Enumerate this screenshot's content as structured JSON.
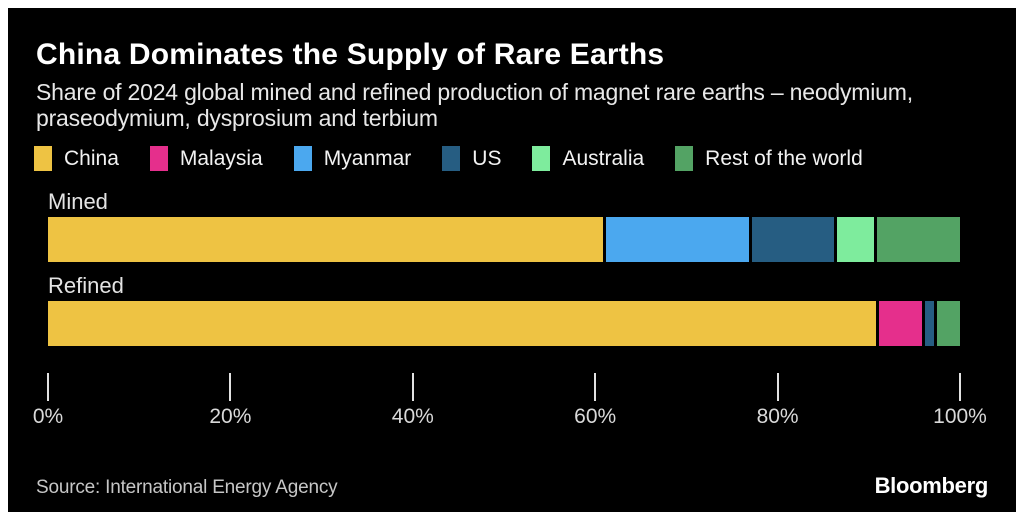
{
  "header": {
    "title": "China Dominates the Supply of Rare Earths",
    "subtitle": "Share of 2024 global mined and refined production of magnet rare earths – neodymium, praseodymium, dysprosium and terbium"
  },
  "chart_data": {
    "type": "bar",
    "stacked": true,
    "orientation": "horizontal",
    "title": "China Dominates the Supply of Rare Earths",
    "categories": [
      "Mined",
      "Refined"
    ],
    "series": [
      {
        "name": "China",
        "color": "#EEC343",
        "values": [
          61,
          91
        ]
      },
      {
        "name": "Malaysia",
        "color": "#E52F8C",
        "values": [
          0,
          5
        ]
      },
      {
        "name": "Myanmar",
        "color": "#4BA8EF",
        "values": [
          16,
          0
        ]
      },
      {
        "name": "US",
        "color": "#265D82",
        "values": [
          9.4,
          1.3
        ]
      },
      {
        "name": "Australia",
        "color": "#7EEC9D",
        "values": [
          4.3,
          0
        ]
      },
      {
        "name": "Rest of the world",
        "color": "#53A364",
        "values": [
          9.3,
          2.7
        ]
      }
    ],
    "x_ticks": [
      "0%",
      "20%",
      "40%",
      "60%",
      "80%",
      "100%"
    ],
    "xlim": [
      0,
      100
    ],
    "unit": "%",
    "legend_position": "top",
    "grid": false
  },
  "footer": {
    "source": "Source: International Energy Agency",
    "brand": "Bloomberg"
  }
}
